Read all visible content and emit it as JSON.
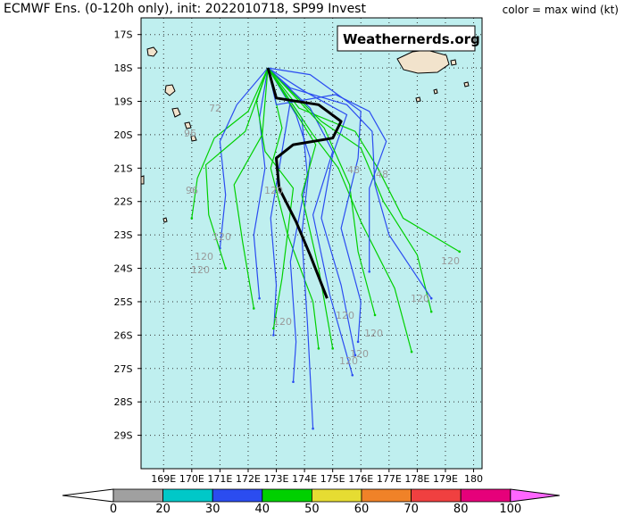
{
  "header": {
    "title": "ECMWF Ens. (0-120h only), init: 2022010718, SP99 Invest",
    "legend_note": "color = max wind (kt)"
  },
  "credit": "Weathernerds.org",
  "map": {
    "lon_range": [
      168.2,
      180.3
    ],
    "lat_range": [
      -30.0,
      -16.5
    ],
    "lat_ticks": [
      "17S",
      "18S",
      "19S",
      "20S",
      "21S",
      "22S",
      "23S",
      "24S",
      "25S",
      "26S",
      "27S",
      "28S",
      "29S"
    ],
    "lon_ticks": [
      "169E",
      "170E",
      "171E",
      "172E",
      "173E",
      "174E",
      "175E",
      "176E",
      "177E",
      "178E",
      "179E",
      "180"
    ],
    "ocean_color": "#bfefef"
  },
  "colorbar": {
    "labels": [
      "0",
      "20",
      "30",
      "40",
      "50",
      "60",
      "70",
      "80",
      "100"
    ],
    "colors": [
      "#a0a0a0",
      "#00c8c8",
      "#2b4cf0",
      "#00d000",
      "#e6dc32",
      "#f08228",
      "#f04040",
      "#e6007a",
      "#ff66ff"
    ]
  },
  "forecast_hour_labels": [
    "72",
    "48",
    "48",
    "96",
    "96",
    "120",
    "120",
    "120",
    "120",
    "120",
    "120",
    "120",
    "120",
    "120",
    "120",
    "120"
  ],
  "tracks": {
    "mean": [
      [
        172.7,
        -18.0
      ],
      [
        173.0,
        -18.9
      ],
      [
        174.5,
        -19.1
      ],
      [
        175.3,
        -19.6
      ],
      [
        175.0,
        -20.1
      ],
      [
        173.6,
        -20.3
      ],
      [
        173.0,
        -20.7
      ],
      [
        173.1,
        -21.6
      ],
      [
        173.7,
        -22.6
      ],
      [
        174.2,
        -23.6
      ],
      [
        174.8,
        -24.9
      ]
    ],
    "members": [
      {
        "color": "blue",
        "pts": [
          [
            172.7,
            -18.0
          ],
          [
            173.5,
            -19.0
          ],
          [
            173.2,
            -20.5
          ],
          [
            172.8,
            -22.5
          ],
          [
            173.0,
            -24.5
          ],
          [
            172.9,
            -26.0
          ]
        ]
      },
      {
        "color": "blue",
        "pts": [
          [
            172.7,
            -18.0
          ],
          [
            174.0,
            -18.7
          ],
          [
            175.5,
            -19.4
          ],
          [
            175.0,
            -20.6
          ],
          [
            174.6,
            -22.5
          ],
          [
            175.3,
            -24.5
          ],
          [
            175.8,
            -26.6
          ]
        ]
      },
      {
        "color": "green",
        "pts": [
          [
            172.7,
            -18.0
          ],
          [
            172.0,
            -19.3
          ],
          [
            170.8,
            -20.1
          ],
          [
            170.2,
            -21.3
          ],
          [
            170.0,
            -22.5
          ]
        ]
      },
      {
        "color": "green",
        "pts": [
          [
            172.7,
            -18.0
          ],
          [
            173.8,
            -19.2
          ],
          [
            175.8,
            -19.9
          ],
          [
            176.6,
            -21.0
          ],
          [
            177.5,
            -22.5
          ],
          [
            179.5,
            -23.5
          ]
        ]
      },
      {
        "color": "blue",
        "pts": [
          [
            172.7,
            -18.0
          ],
          [
            171.6,
            -19.1
          ],
          [
            171.0,
            -20.2
          ],
          [
            171.2,
            -21.8
          ],
          [
            171.0,
            -23.4
          ]
        ]
      },
      {
        "color": "green",
        "pts": [
          [
            172.7,
            -18.0
          ],
          [
            174.6,
            -19.6
          ],
          [
            176.0,
            -20.4
          ],
          [
            176.8,
            -22.0
          ],
          [
            178.0,
            -23.6
          ],
          [
            178.5,
            -25.3
          ]
        ]
      },
      {
        "color": "blue",
        "pts": [
          [
            172.7,
            -18.0
          ],
          [
            173.5,
            -18.6
          ],
          [
            175.5,
            -19.1
          ],
          [
            176.4,
            -19.9
          ],
          [
            176.5,
            -21.5
          ],
          [
            177.0,
            -23.0
          ],
          [
            178.5,
            -24.9
          ]
        ]
      },
      {
        "color": "green",
        "pts": [
          [
            172.7,
            -18.0
          ],
          [
            173.2,
            -19.8
          ],
          [
            172.8,
            -21.0
          ],
          [
            173.4,
            -23.0
          ],
          [
            174.3,
            -25.0
          ],
          [
            174.5,
            -26.4
          ]
        ]
      },
      {
        "color": "blue",
        "pts": [
          [
            172.7,
            -18.0
          ],
          [
            172.4,
            -19.5
          ],
          [
            172.6,
            -21.0
          ],
          [
            172.2,
            -23.0
          ],
          [
            172.4,
            -24.9
          ]
        ]
      },
      {
        "color": "green",
        "pts": [
          [
            172.7,
            -18.0
          ],
          [
            172.5,
            -20.0
          ],
          [
            171.5,
            -21.5
          ],
          [
            171.8,
            -23.2
          ],
          [
            172.2,
            -25.2
          ]
        ]
      },
      {
        "color": "blue",
        "pts": [
          [
            172.7,
            -18.0
          ],
          [
            174.2,
            -19.2
          ],
          [
            175.0,
            -20.5
          ],
          [
            174.3,
            -22.4
          ],
          [
            174.9,
            -24.8
          ],
          [
            175.7,
            -27.2
          ]
        ]
      },
      {
        "color": "green",
        "pts": [
          [
            172.7,
            -18.0
          ],
          [
            174.7,
            -19.8
          ],
          [
            175.6,
            -21.5
          ],
          [
            175.9,
            -23.5
          ],
          [
            176.5,
            -25.4
          ]
        ]
      },
      {
        "color": "blue",
        "pts": [
          [
            172.7,
            -18.0
          ],
          [
            173.9,
            -19.5
          ],
          [
            174.1,
            -21.2
          ],
          [
            173.5,
            -23.8
          ],
          [
            173.7,
            -26.2
          ],
          [
            173.6,
            -27.4
          ]
        ]
      },
      {
        "color": "green",
        "pts": [
          [
            172.7,
            -18.0
          ],
          [
            174.3,
            -20.0
          ],
          [
            175.2,
            -21.0
          ],
          [
            176.0,
            -22.6
          ],
          [
            177.2,
            -24.6
          ],
          [
            177.8,
            -26.5
          ]
        ]
      },
      {
        "color": "blue",
        "pts": [
          [
            172.7,
            -18.0
          ],
          [
            173.7,
            -19.4
          ],
          [
            174.2,
            -20.7
          ],
          [
            173.9,
            -23.0
          ],
          [
            174.1,
            -25.6
          ],
          [
            174.3,
            -28.8
          ]
        ]
      },
      {
        "color": "green",
        "pts": [
          [
            172.7,
            -18.0
          ],
          [
            171.9,
            -19.9
          ],
          [
            170.5,
            -20.9
          ],
          [
            170.6,
            -22.4
          ],
          [
            171.2,
            -24.0
          ]
        ]
      },
      {
        "color": "blue",
        "pts": [
          [
            172.7,
            -18.0
          ],
          [
            173.0,
            -19.1
          ],
          [
            175.1,
            -18.8
          ],
          [
            176.3,
            -19.3
          ],
          [
            176.9,
            -20.2
          ],
          [
            176.3,
            -21.6
          ],
          [
            176.3,
            -24.1
          ]
        ]
      },
      {
        "color": "green",
        "pts": [
          [
            172.7,
            -18.0
          ],
          [
            172.3,
            -19.0
          ],
          [
            172.6,
            -20.5
          ],
          [
            173.6,
            -21.6
          ],
          [
            173.2,
            -24.3
          ],
          [
            172.9,
            -25.8
          ]
        ]
      },
      {
        "color": "blue",
        "pts": [
          [
            172.7,
            -18.0
          ],
          [
            174.2,
            -18.2
          ],
          [
            176.0,
            -19.3
          ],
          [
            175.9,
            -20.7
          ],
          [
            175.3,
            -22.8
          ],
          [
            176.0,
            -25.0
          ],
          [
            175.9,
            -26.2
          ]
        ]
      },
      {
        "color": "green",
        "pts": [
          [
            172.7,
            -18.0
          ],
          [
            174.4,
            -20.3
          ],
          [
            173.9,
            -21.8
          ],
          [
            174.5,
            -24.0
          ],
          [
            175.0,
            -26.4
          ]
        ]
      }
    ]
  }
}
